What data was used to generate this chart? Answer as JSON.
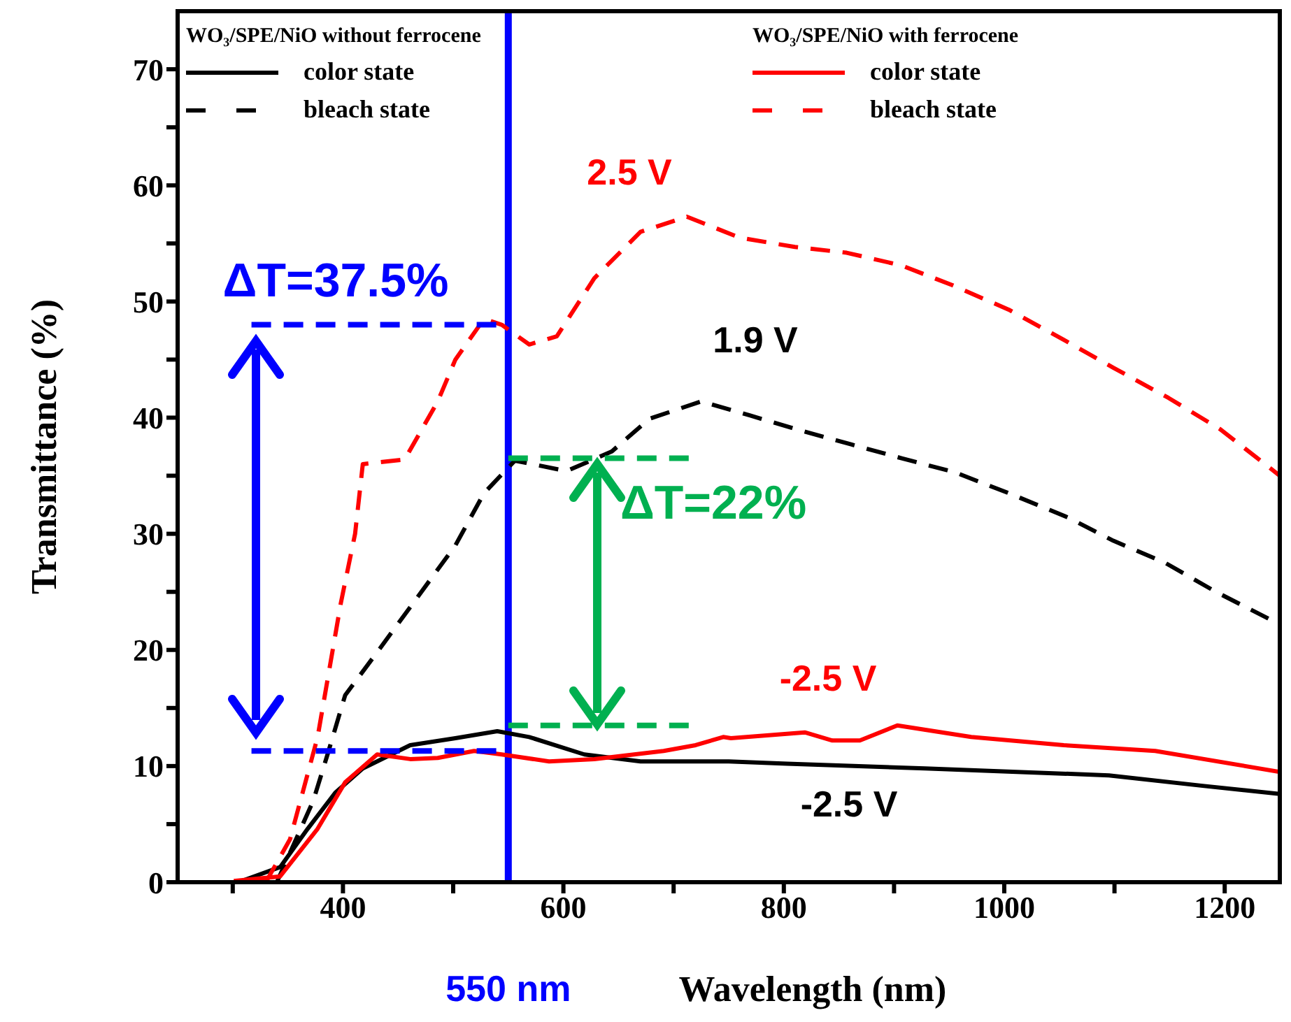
{
  "chart_data": {
    "type": "line",
    "xlabel": "Wavelength (nm)",
    "ylabel": "Transmittance (%)",
    "xlim": [
      250,
      1250
    ],
    "ylim": [
      0,
      75
    ],
    "xticks": [
      {
        "value": 300,
        "label": null
      },
      400,
      {
        "value": 500,
        "label": null
      },
      600,
      {
        "value": 700,
        "label": null
      },
      800,
      {
        "value": 900,
        "label": null
      },
      1000,
      {
        "value": 1100,
        "label": null
      },
      1200
    ],
    "yticks": [
      0,
      {
        "value": 5,
        "label": null
      },
      10,
      {
        "value": 15,
        "label": null
      },
      20,
      {
        "value": 25,
        "label": null
      },
      30,
      {
        "value": 35,
        "label": null
      },
      40,
      {
        "value": 45,
        "label": null
      },
      50,
      {
        "value": 55,
        "label": null
      },
      60,
      {
        "value": 65,
        "label": null
      },
      70
    ],
    "grid": false,
    "legend": "top",
    "marker": "none",
    "series": [
      {
        "name": "color state",
        "color": "#000000",
        "line_style": "solid",
        "x": [
          305,
          343,
          368,
          393,
          418,
          461,
          502,
          540,
          569,
          619,
          670,
          750,
          803,
          928,
          1095,
          1180,
          1250
        ],
        "values": [
          0,
          1.3,
          4.6,
          7.7,
          9.8,
          11.8,
          12.4,
          13.0,
          12.5,
          11.0,
          10.4,
          10.4,
          10.2,
          9.8,
          9.2,
          8.3,
          7.6
        ]
      },
      {
        "name": "bleach state",
        "color": "#000000",
        "line_style": "dashed",
        "x": [
          340,
          373,
          386,
          402,
          431,
          465,
          502,
          528,
          556,
          603,
          644,
          678,
          725,
          769,
          815,
          861,
          907,
          955,
          1004,
          1058,
          1099,
          1146,
          1192,
          1250
        ],
        "values": [
          0,
          7,
          11,
          16.1,
          19.8,
          24.2,
          29,
          33.5,
          36.3,
          35.4,
          37.1,
          39.9,
          41.4,
          40.2,
          38.9,
          37.7,
          36.5,
          35.3,
          33.5,
          31.4,
          29.4,
          27.5,
          25,
          22.2
        ]
      },
      {
        "name": "color state",
        "color": "#ff0000",
        "line_style": "solid",
        "x": [
          301,
          343,
          377,
          402,
          431,
          461,
          486,
          519,
          544,
          587,
          628,
          691,
          720,
          745,
          752,
          819,
          844,
          869,
          903,
          970,
          1054,
          1137,
          1250
        ],
        "values": [
          0.1,
          0.5,
          4.6,
          8.6,
          11,
          10.6,
          10.7,
          11.3,
          11,
          10.4,
          10.6,
          11.3,
          11.8,
          12.5,
          12.4,
          12.9,
          12.2,
          12.2,
          13.5,
          12.5,
          11.8,
          11.3,
          9.5
        ]
      },
      {
        "name": "bleach state",
        "color": "#ff0000",
        "line_style": "dashed",
        "x": [
          330,
          352,
          377,
          398,
          411,
          418,
          456,
          486,
          502,
          528,
          544,
          569,
          594,
          628,
          670,
          712,
          760,
          810,
          857,
          907,
          953,
          1004,
          1054,
          1099,
          1149,
          1196,
          1250
        ],
        "values": [
          0,
          3.7,
          12.5,
          24,
          30,
          36,
          36.4,
          41.4,
          45,
          48.5,
          48,
          46.3,
          47,
          52,
          56,
          57.3,
          55.5,
          54.7,
          54.2,
          53.1,
          51.4,
          49.3,
          46.7,
          44.3,
          41.7,
          39,
          35
        ]
      },
      {
        "color": "#0000ff",
        "line_style": "dashed",
        "x": [
          317,
          550
        ],
        "values": [
          48,
          48
        ]
      },
      {
        "color": "#0000ff",
        "line_style": "dashed",
        "x": [
          317,
          550
        ],
        "values": [
          11.3,
          11.3
        ]
      },
      {
        "color": "#00b050",
        "line_style": "dashed",
        "x": [
          550,
          718
        ],
        "values": [
          36.5,
          36.5
        ]
      },
      {
        "color": "#00b050",
        "line_style": "dashed",
        "x": [
          550,
          718
        ],
        "values": [
          13.5,
          13.5
        ]
      }
    ],
    "ref_lines": [
      {
        "axis": "x",
        "value": 550,
        "label": "550 nm",
        "color": "#0000ff"
      }
    ],
    "annotations": [
      "WO₃/SPE/NiO without ferrocene",
      "WO₃/SPE/NiO with ferrocene",
      "2.5 V",
      "1.9 V",
      "-2.5 V",
      "-2.5 V",
      "ΔT=37.5%",
      "ΔT=22%"
    ]
  }
}
